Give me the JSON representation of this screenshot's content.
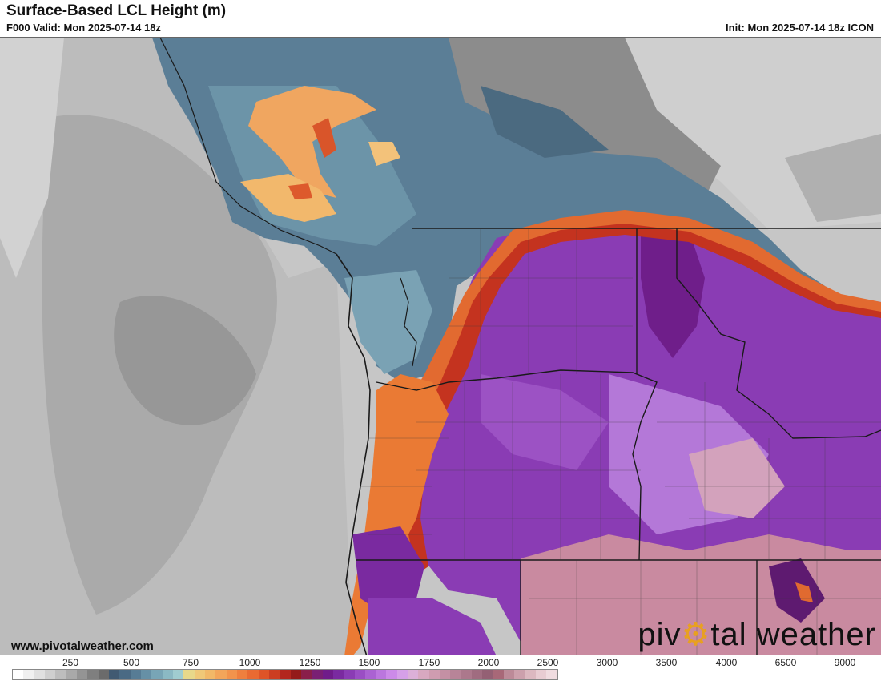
{
  "header": {
    "title": "Surface-Based LCL Height (m)",
    "valid": "F000 Valid: Mon 2025-07-14 18z",
    "init": "Init: Mon 2025-07-14 18z ICON"
  },
  "footer": {
    "url": "www.pivotalweather.com",
    "brand_left": "piv",
    "brand_right": "tal weather",
    "brand_gear": "⚙"
  },
  "legend": {
    "labels": [
      "250",
      "500",
      "750",
      "1000",
      "1250",
      "1500",
      "1750",
      "2000",
      "2500",
      "3000",
      "3500",
      "4000",
      "6500",
      "9000"
    ],
    "colors": [
      "#ffffff",
      "#f0f0f0",
      "#e0e0e0",
      "#cfcfcf",
      "#bdbdbd",
      "#a9a9a9",
      "#949494",
      "#7f7f7f",
      "#6b6b6b",
      "#415a72",
      "#4a6a84",
      "#577c95",
      "#6690a6",
      "#78a5b6",
      "#8bb9c4",
      "#a0ccd0",
      "#e8d88a",
      "#f0c878",
      "#f2b868",
      "#f3a55a",
      "#f2934c",
      "#ef7f3e",
      "#e96a32",
      "#df5428",
      "#cc3e22",
      "#b3261e",
      "#941a1a",
      "#8a1e4a",
      "#7a1f74",
      "#701c8a",
      "#7a2aa0",
      "#8a3cb4",
      "#9a4ec4",
      "#aa62d2",
      "#bb76de",
      "#cc8ae8",
      "#d6a0e8",
      "#dcb0d8",
      "#d8a8c0",
      "#cf9cb0",
      "#c490a4",
      "#b88498",
      "#ac788c",
      "#a06c80",
      "#946074",
      "#a86878",
      "#bc8a98",
      "#cca0ac",
      "#dcb8c0",
      "#e8ccd2",
      "#f0dce0"
    ]
  },
  "colors": {
    "ocean_base": "#c4c4c4",
    "moist_blue": "#557a93",
    "dry_purple": "#8a3cb4",
    "desert_pink": "#c98aa0",
    "boundary_orange": "#e8682e"
  }
}
